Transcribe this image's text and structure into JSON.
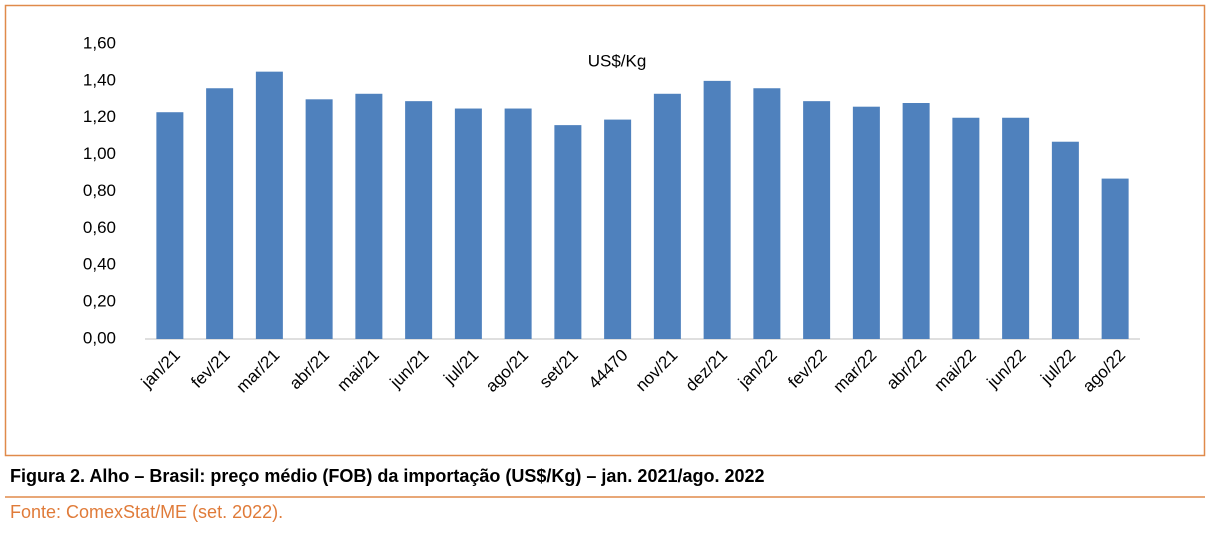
{
  "chart_data": {
    "type": "bar",
    "subtitle": "US$/Kg",
    "title": "Figura 2. Alho – Brasil: preço médio (FOB) da importação (US$/Kg) – jan. 2021/ago. 2022",
    "source": "Fonte: ComexStat/ME (set. 2022).",
    "categories": [
      "jan/21",
      "fev/21",
      "mar/21",
      "abr/21",
      "mai/21",
      "jun/21",
      "jul/21",
      "ago/21",
      "set/21",
      "44470",
      "nov/21",
      "dez/21",
      "jan/22",
      "fev/22",
      "mar/22",
      "abr/22",
      "mai/22",
      "jun/22",
      "jul/22",
      "ago/22"
    ],
    "values": [
      1.23,
      1.36,
      1.45,
      1.3,
      1.33,
      1.29,
      1.25,
      1.25,
      1.16,
      1.19,
      1.33,
      1.4,
      1.36,
      1.29,
      1.26,
      1.28,
      1.2,
      1.2,
      1.07,
      0.87
    ],
    "color": "#4f81bd",
    "ylim": [
      0,
      1.6
    ],
    "yticks": [
      {
        "value": 0,
        "label": "0,00"
      },
      {
        "value": 0.2,
        "label": "0,20"
      },
      {
        "value": 0.4,
        "label": "0,40"
      },
      {
        "value": 0.6,
        "label": "0,60"
      },
      {
        "value": 0.8,
        "label": "0,80"
      },
      {
        "value": 1.0,
        "label": "1,00"
      },
      {
        "value": 1.2,
        "label": "1,20"
      },
      {
        "value": 1.4,
        "label": "1,40"
      },
      {
        "value": 1.6,
        "label": "1,60"
      }
    ],
    "grid": false
  }
}
